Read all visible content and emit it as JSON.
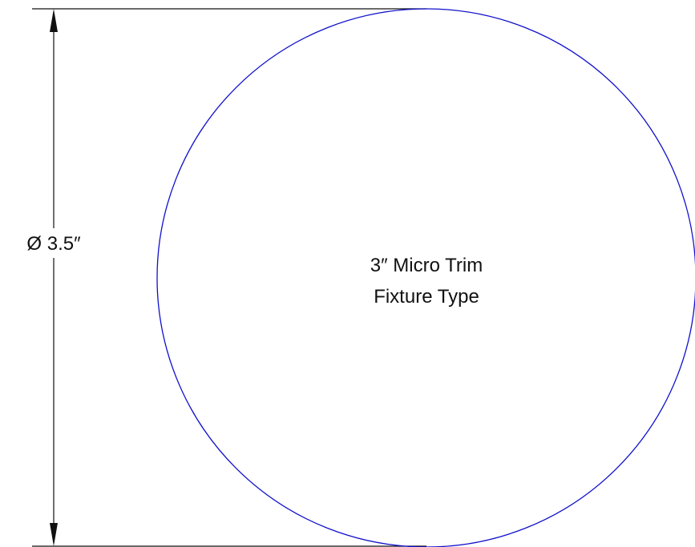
{
  "diagram": {
    "dimension_label": "Ø 3.5″",
    "fixture_lines": [
      "3″ Micro Trim",
      "Fixture Type"
    ],
    "colors": {
      "circle": "#1010cc",
      "lines": "#111111"
    }
  }
}
